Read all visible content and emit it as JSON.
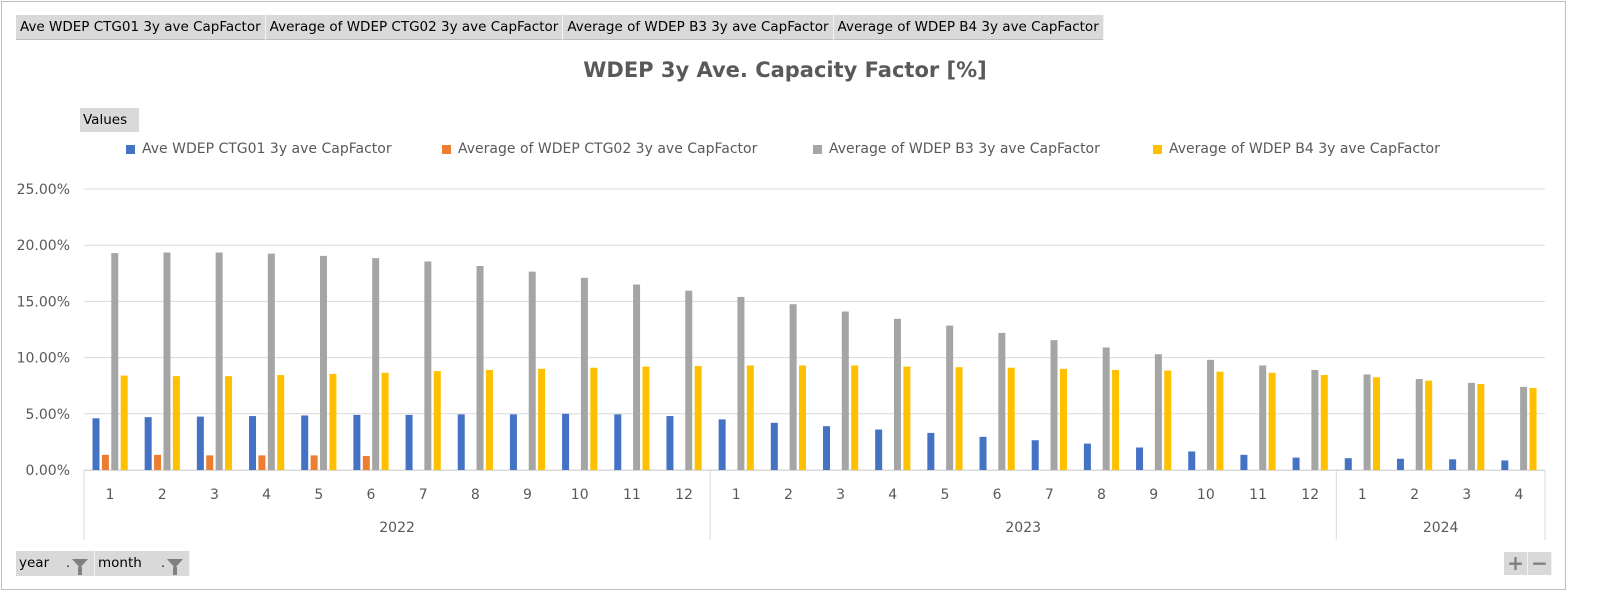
{
  "field_buttons": [
    "Ave WDEP CTG01 3y ave CapFactor",
    "Average of WDEP CTG02 3y ave CapFactor",
    "Average of WDEP B3 3y ave CapFactor",
    "Average of WDEP B4 3y ave CapFactor"
  ],
  "values_button": "Values",
  "filters": [
    {
      "label": "year",
      "icon": "filter-icon"
    },
    {
      "label": "month",
      "icon": "filter-icon"
    }
  ],
  "zoom_buttons": {
    "expand": "+",
    "collapse": "−"
  },
  "chart_data": {
    "type": "bar",
    "title": "WDEP 3y Ave. Capacity Factor [%]",
    "ylim": [
      0,
      25
    ],
    "ytick_step": 5,
    "ytick_labels": [
      "0.00%",
      "5.00%",
      "10.00%",
      "15.00%",
      "20.00%",
      "25.00%"
    ],
    "grid": true,
    "legend_placement": "top",
    "years": [
      {
        "label": "2022",
        "months": 12
      },
      {
        "label": "2023",
        "months": 12
      },
      {
        "label": "2024",
        "months": 4
      }
    ],
    "categories": [
      "1",
      "2",
      "3",
      "4",
      "5",
      "6",
      "7",
      "8",
      "9",
      "10",
      "11",
      "12",
      "1",
      "2",
      "3",
      "4",
      "5",
      "6",
      "7",
      "8",
      "9",
      "10",
      "11",
      "12",
      "1",
      "2",
      "3",
      "4"
    ],
    "series": [
      {
        "name": "Ave WDEP CTG01 3y ave CapFactor",
        "color": "#4472c4",
        "values": [
          4.6,
          4.7,
          4.75,
          4.8,
          4.85,
          4.9,
          4.9,
          4.95,
          4.95,
          5.0,
          4.95,
          4.8,
          4.5,
          4.2,
          3.9,
          3.6,
          3.3,
          2.95,
          2.65,
          2.35,
          2.0,
          1.65,
          1.35,
          1.1,
          1.05,
          1.0,
          0.95,
          0.85
        ]
      },
      {
        "name": "Average of WDEP CTG02 3y ave CapFactor",
        "color": "#ed7d31",
        "values": [
          1.35,
          1.35,
          1.3,
          1.3,
          1.3,
          1.25,
          null,
          null,
          null,
          null,
          null,
          null,
          null,
          null,
          null,
          null,
          null,
          null,
          null,
          null,
          null,
          null,
          null,
          null,
          null,
          null,
          null,
          null
        ]
      },
      {
        "name": "Average of WDEP B3 3y ave CapFactor",
        "color": "#a5a5a5",
        "values": [
          19.3,
          19.35,
          19.35,
          19.25,
          19.05,
          18.85,
          18.55,
          18.15,
          17.65,
          17.1,
          16.5,
          15.95,
          15.4,
          14.75,
          14.1,
          13.45,
          12.85,
          12.2,
          11.55,
          10.9,
          10.3,
          9.8,
          9.3,
          8.9,
          8.5,
          8.1,
          7.75,
          7.4
        ]
      },
      {
        "name": "Average of WDEP B4 3y ave CapFactor",
        "color": "#ffc000",
        "values": [
          8.4,
          8.35,
          8.35,
          8.45,
          8.55,
          8.65,
          8.8,
          8.9,
          9.0,
          9.1,
          9.2,
          9.25,
          9.3,
          9.3,
          9.3,
          9.2,
          9.15,
          9.1,
          9.0,
          8.9,
          8.85,
          8.75,
          8.65,
          8.45,
          8.25,
          7.95,
          7.65,
          7.3
        ]
      }
    ]
  }
}
